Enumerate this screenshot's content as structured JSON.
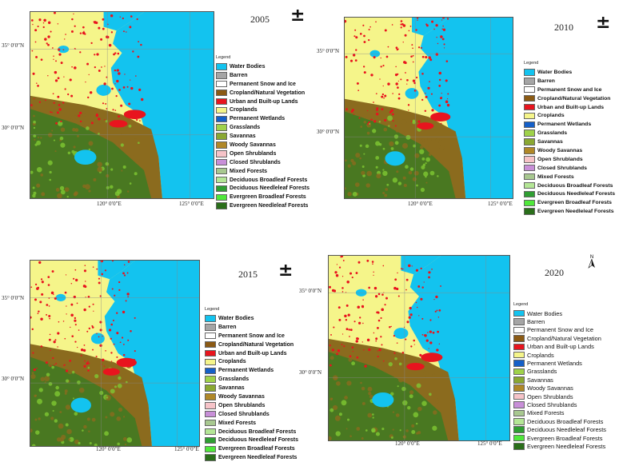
{
  "colors": {
    "water": "#13c3ef",
    "cropland": "#f5f58a",
    "urban": "#e8141e",
    "mosaic": "#8b6b1e",
    "forest": "#3d7a22",
    "grass": "#7fc832"
  },
  "legend": {
    "title": "Legend",
    "items": [
      {
        "label": "Water Bodies",
        "color": "#13c3ef"
      },
      {
        "label": "Barren",
        "color": "#a5a5a5"
      },
      {
        "label": "Permanent Snow and Ice",
        "color": "#ffffff"
      },
      {
        "label": "Cropland/Natural Vegetation",
        "color": "#8b5a14"
      },
      {
        "label": "Urban and Built-up Lands",
        "color": "#e8141e"
      },
      {
        "label": "Croplands",
        "color": "#f5f58a"
      },
      {
        "label": "Permanent Wetlands",
        "color": "#1560c8"
      },
      {
        "label": "Grasslands",
        "color": "#9fd24a"
      },
      {
        "label": "Savannas",
        "color": "#8aa832"
      },
      {
        "label": "Woody Savannas",
        "color": "#b08828"
      },
      {
        "label": "Open Shrublands",
        "color": "#f6c3c8"
      },
      {
        "label": "Closed Shrublands",
        "color": "#c88fd8"
      },
      {
        "label": "Mixed Forests",
        "color": "#a8c890"
      },
      {
        "label": "Deciduous Broadleaf Forests",
        "color": "#b4e696"
      },
      {
        "label": "Deciduous Needleleaf Forests",
        "color": "#2f9e32"
      },
      {
        "label": "Evergreen Broadleaf Forests",
        "color": "#4fe83a"
      },
      {
        "label": "Evergreen Needleleaf Forests",
        "color": "#2a6e1a"
      }
    ]
  },
  "panels": [
    {
      "year": "2005",
      "north_symbol": "±",
      "lat_labels": [
        "35° 0′0″N",
        "30° 0′0″N"
      ],
      "lon_labels": [
        "120° 0′0″E",
        "125° 0′0″E"
      ]
    },
    {
      "year": "2010",
      "north_symbol": "±",
      "lat_labels": [
        "35° 0′0″N",
        "30° 0′0″N"
      ],
      "lon_labels": [
        "120° 0′0″E",
        "125° 0′0″E"
      ]
    },
    {
      "year": "2015",
      "north_symbol": "±",
      "lat_labels": [
        "35° 0′0″N",
        "30° 0′0″N"
      ],
      "lon_labels": [
        "120° 0′0″E",
        "125° 0′0″E"
      ]
    },
    {
      "year": "2020",
      "north_symbol": "N",
      "lat_labels": [
        "35° 0′0″N",
        "30° 0′0″N"
      ],
      "lon_labels": [
        "120° 0′0″E",
        "125° 0′0″E"
      ]
    }
  ]
}
